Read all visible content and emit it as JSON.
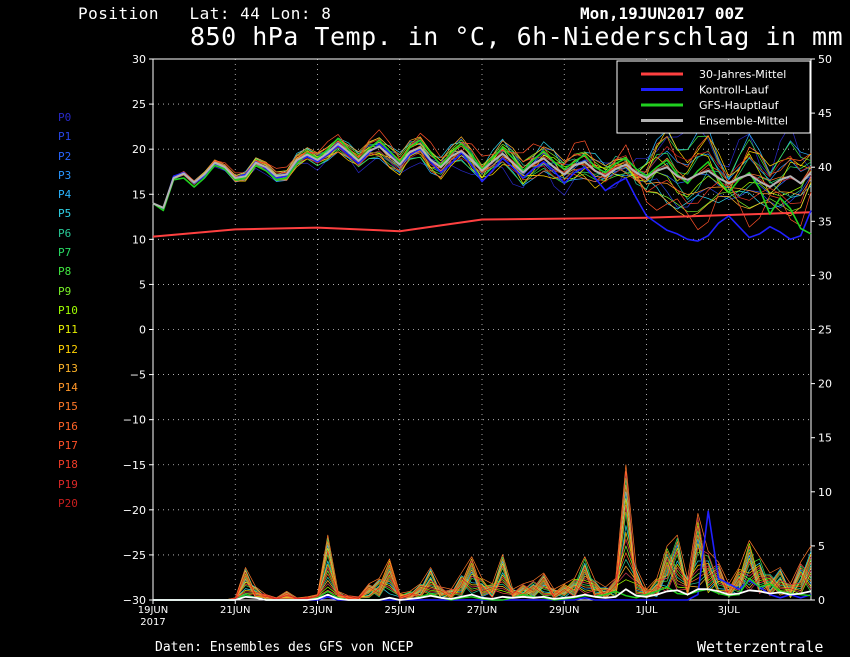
{
  "header": {
    "position_label": "Position   Lat: 44 Lon: 8",
    "run_date": "Mon,19JUN2017 00Z",
    "title": "850 hPa Temp. in °C, 6h-Niederschlag in mm"
  },
  "footer": {
    "source": "Daten: Ensembles des GFS von NCEP",
    "brand": "Wetterzentrale"
  },
  "members": [
    {
      "label": "P0",
      "color": "#2828c8"
    },
    {
      "label": "P1",
      "color": "#2846e6"
    },
    {
      "label": "P2",
      "color": "#2864ff"
    },
    {
      "label": "P3",
      "color": "#2896ff"
    },
    {
      "label": "P4",
      "color": "#2ab4ff"
    },
    {
      "label": "P5",
      "color": "#30d2e6"
    },
    {
      "label": "P6",
      "color": "#28c896"
    },
    {
      "label": "P7",
      "color": "#28dc64"
    },
    {
      "label": "P8",
      "color": "#40e640"
    },
    {
      "label": "P9",
      "color": "#78f028"
    },
    {
      "label": "P10",
      "color": "#a0ff00"
    },
    {
      "label": "P11",
      "color": "#e6f000"
    },
    {
      "label": "P12",
      "color": "#ffd200"
    },
    {
      "label": "P13",
      "color": "#ffb428"
    },
    {
      "label": "P14",
      "color": "#ff9628"
    },
    {
      "label": "P15",
      "color": "#ff7828"
    },
    {
      "label": "P16",
      "color": "#ff6428"
    },
    {
      "label": "P17",
      "color": "#ff5028"
    },
    {
      "label": "P18",
      "color": "#f03c28"
    },
    {
      "label": "P19",
      "color": "#dc2828"
    },
    {
      "label": "P20",
      "color": "#c81e1e"
    }
  ],
  "chart_data": {
    "type": "line",
    "title": "850 hPa Temp. in °C, 6h-Niederschlag in mm",
    "x_tick_labels": [
      "19JUN",
      "21JUN",
      "23JUN",
      "25JUN",
      "27JUN",
      "29JUN",
      "1JUL",
      "3JUL"
    ],
    "x_year_label": "2017",
    "x_range_hours": [
      0,
      384
    ],
    "y_left": {
      "label": "°C",
      "min": -30,
      "max": 30,
      "ticks": [
        30,
        25,
        20,
        15,
        10,
        5,
        0,
        -5,
        -10,
        -15,
        -20,
        -25,
        -30
      ]
    },
    "y_right": {
      "label": "mm",
      "min": 0,
      "max": 50,
      "ticks": [
        50,
        45,
        40,
        35,
        30,
        25,
        20,
        15,
        10,
        5,
        0
      ]
    },
    "grid": true,
    "legend_position": "top-right",
    "legend": [
      {
        "name": "30-Jahres-Mittel",
        "color": "#ff4040"
      },
      {
        "name": "Kontroll-Lauf",
        "color": "#2020ff"
      },
      {
        "name": "GFS-Hauptlauf",
        "color": "#20d020"
      },
      {
        "name": "Ensemble-Mittel",
        "color": "#b4b4b4"
      }
    ],
    "climatology_x": [
      0,
      48,
      96,
      144,
      192,
      240,
      288,
      336,
      384
    ],
    "climatology_temp": [
      10.3,
      11.1,
      11.3,
      10.9,
      12.2,
      12.3,
      12.4,
      12.7,
      13.0
    ],
    "ensemble_mean_x": [
      0,
      6,
      12,
      18,
      24,
      30,
      36,
      42,
      48,
      54,
      60,
      66,
      72,
      78,
      84,
      90,
      96,
      102,
      108,
      114,
      120,
      126,
      132,
      138,
      144,
      150,
      156,
      162,
      168,
      174,
      180,
      186,
      192,
      198,
      204,
      210,
      216,
      222,
      228,
      234,
      240,
      246,
      252,
      258,
      264,
      270,
      276,
      282,
      288,
      294,
      300,
      306,
      312,
      318,
      324,
      330,
      336,
      342,
      348,
      354,
      360,
      366,
      372,
      378,
      384
    ],
    "ensemble_mean_temp": [
      14.0,
      13.5,
      16.8,
      17.3,
      16.3,
      17.2,
      18.5,
      18.0,
      16.8,
      17.0,
      18.5,
      18.0,
      17.0,
      17.2,
      18.8,
      19.4,
      18.8,
      19.6,
      20.6,
      19.7,
      18.7,
      19.8,
      20.3,
      19.3,
      18.3,
      19.7,
      20.2,
      18.8,
      18.0,
      19.2,
      19.8,
      18.8,
      17.6,
      18.6,
      19.5,
      18.5,
      17.4,
      18.4,
      19.0,
      18.0,
      17.2,
      18.2,
      18.6,
      17.6,
      17.0,
      17.8,
      18.3,
      17.4,
      16.8,
      17.6,
      18.0,
      17.0,
      16.6,
      17.2,
      17.6,
      16.8,
      16.2,
      16.8,
      17.2,
      16.4,
      15.8,
      16.6,
      17.0,
      16.2,
      17.4
    ],
    "kontroll_temp": [
      14.0,
      13.4,
      17.0,
      17.4,
      16.2,
      17.0,
      18.4,
      17.8,
      16.8,
      17.2,
      18.6,
      17.8,
      16.8,
      17.0,
      18.6,
      19.2,
      18.6,
      19.4,
      20.4,
      19.4,
      18.4,
      19.6,
      20.6,
      19.6,
      18.2,
      19.4,
      20.0,
      18.6,
      17.4,
      18.4,
      19.6,
      18.2,
      16.4,
      17.6,
      19.0,
      18.0,
      16.8,
      17.8,
      18.6,
      17.6,
      16.2,
      17.4,
      18.0,
      16.8,
      15.4,
      16.2,
      16.8,
      14.6,
      12.6,
      11.8,
      11.0,
      10.6,
      10.0,
      9.8,
      10.4,
      11.8,
      12.6,
      11.4,
      10.2,
      10.6,
      11.4,
      10.8,
      10.0,
      10.4,
      13.2
    ],
    "hauptlauf_temp": [
      14.0,
      13.2,
      16.6,
      16.8,
      15.8,
      16.8,
      18.2,
      17.8,
      16.6,
      16.8,
      18.2,
      17.6,
      16.6,
      16.8,
      18.4,
      19.6,
      19.0,
      20.0,
      21.2,
      20.0,
      18.8,
      20.0,
      21.0,
      19.8,
      18.6,
      20.2,
      21.0,
      19.6,
      18.2,
      19.6,
      20.6,
      19.4,
      17.8,
      19.0,
      20.2,
      19.0,
      17.6,
      18.8,
      19.8,
      18.6,
      17.8,
      18.6,
      19.4,
      18.0,
      17.4,
      18.4,
      19.0,
      17.8,
      17.0,
      18.0,
      18.8,
      17.2,
      16.2,
      17.6,
      18.6,
      16.6,
      15.2,
      16.6,
      17.4,
      15.6,
      12.8,
      14.6,
      13.4,
      11.2,
      10.6
    ],
    "precip_x": [
      0,
      6,
      12,
      18,
      24,
      30,
      36,
      42,
      48,
      54,
      60,
      66,
      72,
      78,
      84,
      90,
      96,
      102,
      108,
      114,
      120,
      126,
      132,
      138,
      144,
      150,
      156,
      162,
      168,
      174,
      180,
      186,
      192,
      198,
      204,
      210,
      216,
      222,
      228,
      234,
      240,
      246,
      252,
      258,
      264,
      270,
      276,
      282,
      288,
      294,
      300,
      306,
      312,
      318,
      324,
      330,
      336,
      342,
      348,
      354,
      360,
      366,
      372,
      378,
      384
    ],
    "precip_max_member_mm": [
      0,
      0,
      0,
      0,
      0,
      0,
      0,
      0,
      0.2,
      3.0,
      1.2,
      0.5,
      0.2,
      0.8,
      0.2,
      0.3,
      0.5,
      6.0,
      0.8,
      0.4,
      0.3,
      1.5,
      2.0,
      3.8,
      0.6,
      0.8,
      1.5,
      3.0,
      1.2,
      1.0,
      2.5,
      4.0,
      2.0,
      1.5,
      4.2,
      1.0,
      1.5,
      1.8,
      2.5,
      1.0,
      1.5,
      2.0,
      4.0,
      1.8,
      1.2,
      2.0,
      12.5,
      3.0,
      1.0,
      2.0,
      5.0,
      6.0,
      2.0,
      8.0,
      4.5,
      3.5,
      1.5,
      3.0,
      5.5,
      4.0,
      2.5,
      3.0,
      1.5,
      3.5,
      5.0
    ],
    "precip_kontroll_mm": [
      0,
      0,
      0,
      0,
      0,
      0,
      0,
      0,
      0,
      0.5,
      0.2,
      0,
      0,
      0,
      0,
      0,
      0,
      0.3,
      0,
      0,
      0,
      0,
      0,
      0,
      0,
      0,
      0,
      0,
      0,
      0,
      0,
      0,
      0,
      0,
      0,
      0,
      0,
      0,
      0,
      0,
      0,
      0,
      0.2,
      0,
      0,
      0,
      0,
      0,
      0,
      0,
      0,
      0,
      0,
      0.5,
      8.2,
      2.0,
      1.5,
      1.0,
      1.8,
      1.2,
      0.5,
      0.2,
      0.5,
      0.2,
      0.5
    ],
    "precip_hauptlauf_mm": [
      0,
      0,
      0,
      0,
      0,
      0,
      0,
      0,
      0,
      0.5,
      0.2,
      0,
      0,
      0,
      0,
      0,
      0.2,
      0.8,
      0.2,
      0,
      0,
      0,
      0,
      0.2,
      0,
      0.1,
      0.3,
      0.6,
      0.2,
      0,
      0.2,
      0.3,
      0.1,
      0,
      0,
      0.2,
      0.5,
      0.3,
      0.2,
      0,
      0.1,
      0.2,
      0.4,
      0.3,
      0.5,
      0.8,
      0.4,
      0.2,
      0.5,
      0.8,
      1.2,
      0.6,
      0.5,
      0.8,
      1.0,
      0.6,
      0.4,
      0.5,
      2.0,
      1.2,
      1.5,
      0.8,
      0.6,
      0.5,
      0.4
    ],
    "precip_mean_mm": [
      0,
      0,
      0,
      0,
      0,
      0,
      0,
      0,
      0,
      0.3,
      0.2,
      0,
      0,
      0,
      0,
      0,
      0.1,
      0.5,
      0.1,
      0,
      0,
      0,
      0,
      0.2,
      0,
      0.1,
      0.2,
      0.4,
      0.2,
      0.1,
      0.3,
      0.5,
      0.2,
      0.1,
      0.3,
      0.2,
      0.3,
      0.2,
      0.3,
      0.1,
      0.2,
      0.3,
      0.5,
      0.3,
      0.2,
      0.3,
      1.0,
      0.4,
      0.3,
      0.5,
      0.8,
      0.9,
      0.5,
      1.0,
      1.0,
      0.8,
      0.5,
      0.6,
      0.9,
      0.8,
      0.6,
      0.7,
      0.5,
      0.6,
      0.8
    ]
  }
}
